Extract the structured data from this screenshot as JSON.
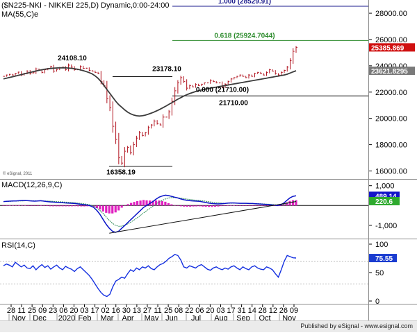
{
  "header": {
    "title": "($N225-NKI - NIKKEI 225,D) Dynamic,0:00-24:00",
    "ma_label": "MA(55,C)e"
  },
  "colors": {
    "price": "#b0101c",
    "ma": "#3b3b3b",
    "macd": "#0a14c8",
    "signal": "#2e8b57",
    "hist": "#e020c0",
    "rsi": "#1430e0",
    "fib1": "#1a1a8c",
    "fib618": "#2a8a2a",
    "trend": "#111111",
    "tag_last": "#d01010",
    "tag_ma": "#7a7a7a",
    "tag_macd": "#1414c8",
    "tag_signal": "#2eaa2e",
    "tag_rsi": "#1a3cd0"
  },
  "annotations": {
    "fib_100": "1.000 (28529.91)",
    "fib_618": "0.618 (25924.7044)",
    "fib_0": "0.000 (21710.00)",
    "level_21710": "21710.00",
    "high_24108": "24108.10",
    "high_23178": "23178.10",
    "low_16358": "16358.19",
    "copyright": "© eSignal, 2011"
  },
  "axis_tags": {
    "last_price": "25385.869",
    "ma_value": "23621.8295",
    "macd_value": "489.14",
    "signal_value": "220.6",
    "rsi_value": "75.55"
  },
  "price_axis": [
    "28000.00",
    "26000.00",
    "24000.00",
    "22000.00",
    "20000.00",
    "18000.00",
    "16000.00"
  ],
  "macd_panel": {
    "label": "MACD(12,26,9,C)",
    "ticks": [
      "1,000",
      "-1,000"
    ]
  },
  "rsi_panel": {
    "label": "RSI(14,C)",
    "ticks": [
      "100",
      "50",
      "0"
    ]
  },
  "x_axis": {
    "days": [
      "28",
      "11",
      "25",
      "09",
      "23",
      "06",
      "20",
      "03",
      "17",
      "02",
      "16",
      "30",
      "13",
      "27",
      "11",
      "25",
      "08",
      "22",
      "06",
      "20",
      "03",
      "17",
      "31",
      "14",
      "28",
      "12",
      "26",
      "09"
    ],
    "months": [
      "Nov",
      "Dec",
      "2020",
      "Feb",
      "Mar",
      "Apr",
      "May",
      "Jun",
      "Jul",
      "Aug",
      "Sep",
      "Oct",
      "Nov"
    ]
  },
  "footer": {
    "text": "Published by eSignal - www.esignal.com"
  },
  "chart_data": {
    "type": "line",
    "price_panel": {
      "ylim": [
        15500,
        28900
      ],
      "price_close": [
        23200,
        23300,
        23350,
        23300,
        23420,
        23520,
        23300,
        23420,
        23600,
        23400,
        23480,
        23760,
        23680,
        23500,
        23700,
        23800,
        23950,
        23600,
        23720,
        23860,
        23900,
        23700,
        24050,
        23900,
        23700,
        23720,
        23950,
        23800,
        23820,
        23650,
        23600,
        23500,
        23400,
        22800,
        22500,
        21500,
        20800,
        19400,
        18400,
        17000,
        16600,
        17500,
        17800,
        17400,
        18000,
        18500,
        18900,
        18700,
        18900,
        19300,
        19500,
        19800,
        19600,
        19500,
        20100,
        20100,
        20500,
        21300,
        22100,
        22700,
        23100,
        22800,
        22300,
        22500,
        22400,
        22600,
        22500,
        22600,
        22700,
        22700,
        22900,
        22800,
        22700,
        22700,
        22400,
        22600,
        22800,
        23000,
        23100,
        23200,
        23300,
        23200,
        23100,
        23300,
        23200,
        23400,
        23500,
        23400,
        23300,
        23500,
        23700,
        23600,
        23400,
        23300,
        23500,
        23650,
        23900,
        24400,
        25100,
        25400
      ],
      "ma55": [
        23000,
        23055,
        23110,
        23165,
        23220,
        23275,
        23330,
        23385,
        23440,
        23495,
        23550,
        23605,
        23655,
        23700,
        23740,
        23775,
        23800,
        23820,
        23835,
        23845,
        23850,
        23845,
        23830,
        23810,
        23780,
        23740,
        23690,
        23630,
        23560,
        23480,
        23380,
        23240,
        23050,
        22800,
        22500,
        22200,
        21900,
        21600,
        21300,
        21050,
        20850,
        20650,
        20480,
        20350,
        20260,
        20200,
        20180,
        20200,
        20250,
        20320,
        20400,
        20490,
        20590,
        20700,
        20820,
        20940,
        21070,
        21200,
        21330,
        21460,
        21580,
        21700,
        21800,
        21890,
        21970,
        22040,
        22100,
        22160,
        22210,
        22260,
        22300,
        22340,
        22380,
        22420,
        22460,
        22500,
        22540,
        22580,
        22620,
        22660,
        22700,
        22740,
        22780,
        22820,
        22860,
        22900,
        22940,
        22980,
        23020,
        23060,
        23100,
        23140,
        23180,
        23220,
        23260,
        23300,
        23360,
        23450,
        23540,
        23621.8
      ],
      "fib_levels": [
        {
          "label": "1.000",
          "price": 28529.91
        },
        {
          "label": "0.618",
          "price": 25924.7044
        },
        {
          "label": "0.000",
          "price": 21710.0
        }
      ],
      "marked_levels": [
        24108.1,
        23178.1,
        21710.0,
        16358.19
      ]
    },
    "macd_panel": {
      "ylim": [
        -1600,
        1200
      ],
      "macd": [
        200,
        210,
        220,
        230,
        230,
        240,
        250,
        250,
        240,
        230,
        220,
        230,
        240,
        220,
        200,
        180,
        170,
        160,
        150,
        140,
        130,
        120,
        110,
        100,
        80,
        60,
        40,
        20,
        -20,
        -100,
        -250,
        -450,
        -700,
        -950,
        -1150,
        -1300,
        -1350,
        -1300,
        -1150,
        -1000,
        -850,
        -700,
        -550,
        -400,
        -250,
        -100,
        0,
        100,
        200,
        320,
        420,
        480,
        520,
        500,
        460,
        420,
        380,
        330,
        290,
        260,
        240,
        230,
        220,
        210,
        180,
        150,
        120,
        100,
        90,
        80,
        90,
        100,
        120,
        130,
        130,
        120,
        110,
        110,
        110,
        100,
        100,
        90,
        80,
        70,
        60,
        50,
        30,
        20,
        0,
        30,
        120,
        250,
        380,
        460,
        489
      ],
      "signal": [
        200,
        205,
        210,
        215,
        222,
        228,
        232,
        237,
        240,
        240,
        236,
        233,
        232,
        230,
        225,
        218,
        210,
        200,
        190,
        180,
        170,
        160,
        148,
        135,
        120,
        105,
        85,
        60,
        25,
        -30,
        -120,
        -250,
        -400,
        -580,
        -750,
        -900,
        -1000,
        -1050,
        -1040,
        -990,
        -920,
        -830,
        -730,
        -620,
        -500,
        -380,
        -260,
        -150,
        -40,
        70,
        170,
        260,
        330,
        380,
        400,
        400,
        390,
        370,
        345,
        320,
        300,
        280,
        265,
        250,
        235,
        215,
        190,
        170,
        150,
        130,
        120,
        112,
        112,
        115,
        118,
        118,
        116,
        114,
        112,
        108,
        104,
        98,
        92,
        84,
        76,
        66,
        54,
        42,
        30,
        30,
        50,
        90,
        150,
        190,
        220.6
      ],
      "trendline": [
        [
          34,
          -1400
        ],
        [
          94,
          200
        ]
      ]
    },
    "rsi_panel": {
      "ylim": [
        0,
        100
      ],
      "rsi": [
        62,
        65,
        63,
        60,
        68,
        64,
        60,
        63,
        58,
        57,
        62,
        55,
        60,
        64,
        59,
        62,
        56,
        60,
        63,
        58,
        55,
        61,
        58,
        56,
        52,
        57,
        60,
        55,
        50,
        45,
        38,
        30,
        22,
        15,
        10,
        8,
        12,
        25,
        35,
        38,
        42,
        40,
        48,
        55,
        52,
        58,
        55,
        60,
        58,
        62,
        57,
        55,
        60,
        64,
        66,
        70,
        75,
        78,
        82,
        80,
        72,
        60,
        58,
        62,
        60,
        58,
        62,
        64,
        60,
        56,
        54,
        58,
        60,
        57,
        55,
        58,
        56,
        60,
        62,
        58,
        55,
        60,
        57,
        55,
        60,
        62,
        58,
        56,
        55,
        60,
        58,
        55,
        48,
        42,
        55,
        70,
        80,
        78,
        76,
        75.55
      ]
    }
  }
}
